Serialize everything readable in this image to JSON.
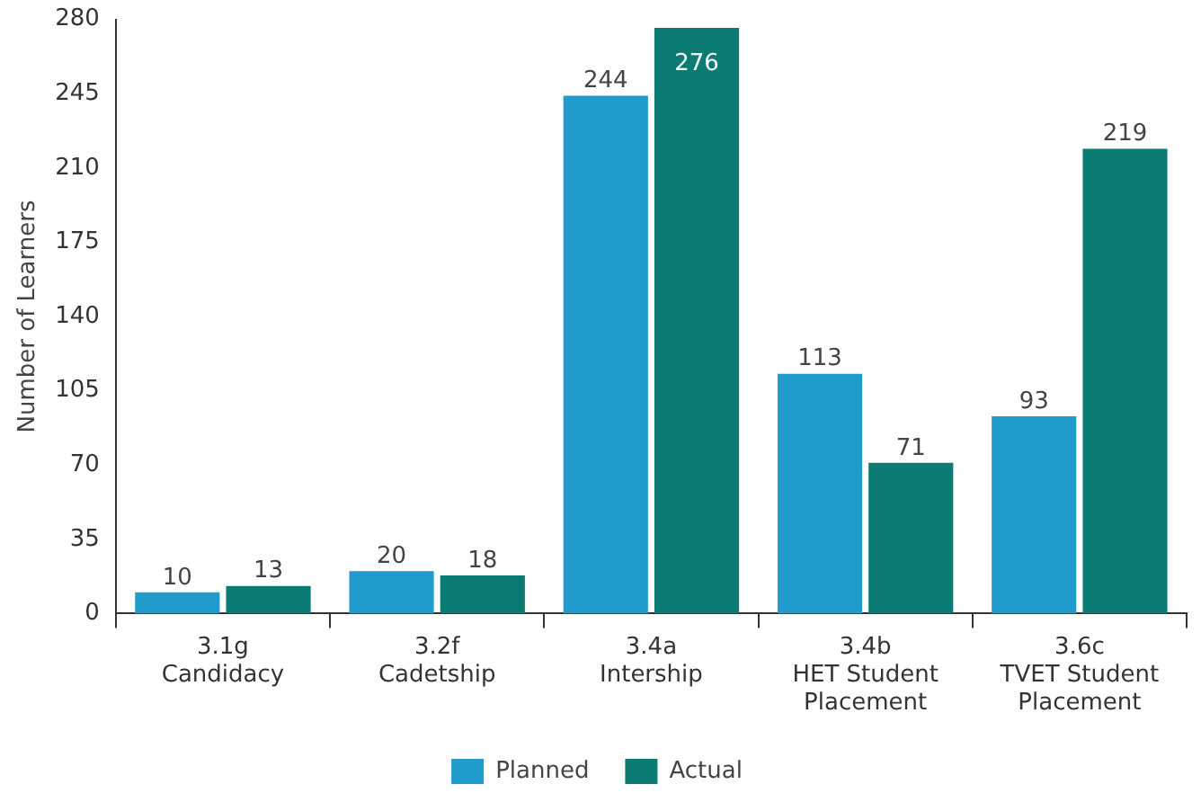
{
  "chart_data": {
    "type": "bar",
    "ylabel": "Number of Learners",
    "categories": [
      "3.1g\nCandidacy",
      "3.2f\nCadetship",
      "3.4a\nIntership",
      "3.4b\nHET Student\nPlacement",
      "3.6c\nTVET Student\nPlacement"
    ],
    "series": [
      {
        "name": "Planned",
        "color": "#1f9bcc",
        "values": [
          10,
          20,
          244,
          113,
          93
        ]
      },
      {
        "name": "Actual",
        "color": "#0b7c73",
        "values": [
          13,
          18,
          276,
          71,
          219
        ]
      }
    ],
    "ylim": [
      0,
      280
    ],
    "yticks": [
      0,
      35,
      70,
      105,
      140,
      175,
      210,
      245,
      280
    ],
    "grid": false,
    "legend": "bottom",
    "data_labels": true
  }
}
